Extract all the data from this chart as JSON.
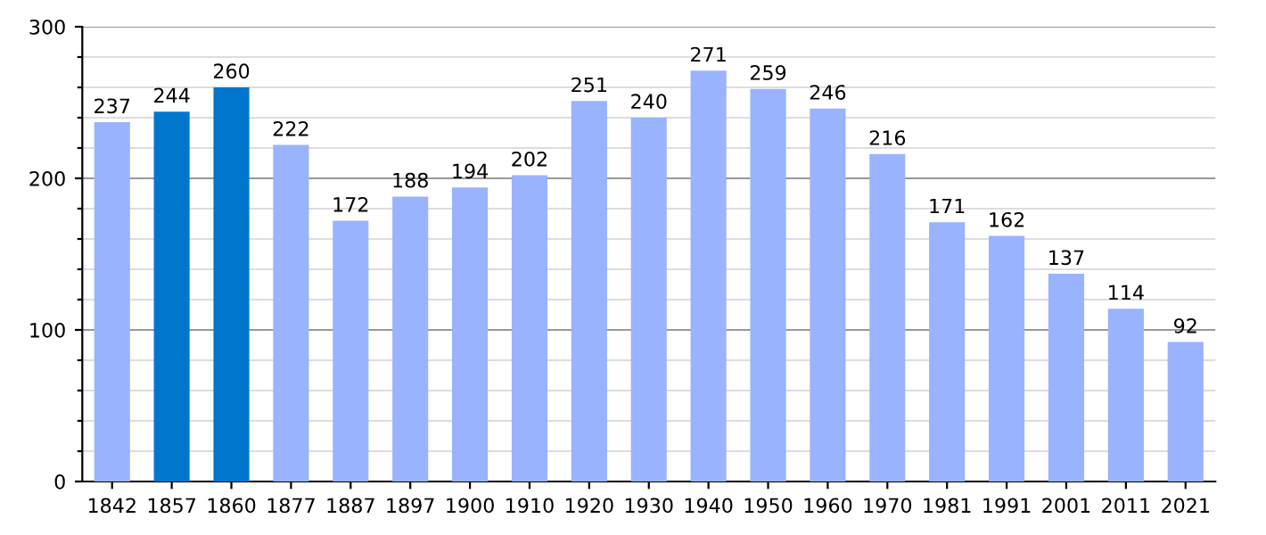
{
  "chart_data": {
    "type": "bar",
    "categories": [
      "1842",
      "1857",
      "1860",
      "1877",
      "1887",
      "1897",
      "1900",
      "1910",
      "1920",
      "1930",
      "1940",
      "1950",
      "1960",
      "1970",
      "1981",
      "1991",
      "2001",
      "2011",
      "2021"
    ],
    "values": [
      237,
      244,
      260,
      222,
      172,
      188,
      194,
      202,
      251,
      240,
      271,
      259,
      246,
      216,
      171,
      162,
      137,
      114,
      92
    ],
    "colors": [
      "#99b3ff",
      "#0077cc",
      "#0077cc",
      "#99b3ff",
      "#99b3ff",
      "#99b3ff",
      "#99b3ff",
      "#99b3ff",
      "#99b3ff",
      "#99b3ff",
      "#99b3ff",
      "#99b3ff",
      "#99b3ff",
      "#99b3ff",
      "#99b3ff",
      "#99b3ff",
      "#99b3ff",
      "#99b3ff",
      "#99b3ff"
    ],
    "ylim": [
      0,
      300
    ],
    "yticks": [
      0,
      {
        "value": 20,
        "label": null
      },
      {
        "value": 40,
        "label": null
      },
      {
        "value": 60,
        "label": null
      },
      {
        "value": 80,
        "label": null
      },
      100,
      {
        "value": 120,
        "label": null
      },
      {
        "value": 140,
        "label": null
      },
      {
        "value": 160,
        "label": null
      },
      {
        "value": 180,
        "label": null
      },
      200,
      {
        "value": 220,
        "label": null
      },
      {
        "value": 240,
        "label": null
      },
      {
        "value": 260,
        "label": null
      },
      {
        "value": 280,
        "label": null
      },
      300
    ],
    "grid": "y",
    "data_labels": true
  }
}
